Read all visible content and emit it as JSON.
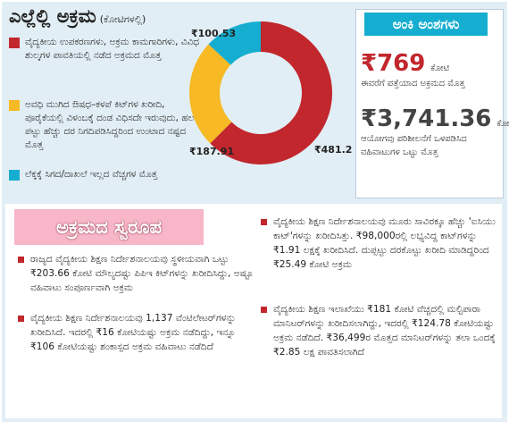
{
  "chart_data": {
    "type": "pie",
    "title": "ಎಲ್ಲೆಲ್ಲಿ ಅಕ್ರಮ",
    "subtitle": "(ಕೋಟಿಗಳಲ್ಲಿ)",
    "categories": [
      "ವೈದ್ಯಕೀಯ ಉಪಕರಣಗಳು, ಅಕ್ರಮ ಕಾಮಗಾರಿಗಳು, ವಿವಿಧ ಶುಲ್ಕಗಳ ಪಾವತಿಯಲ್ಲಿ ನಡೆದ ಅಕ್ರಮದ ಮೊತ್ತ",
      "ಅವಧಿ ಮುಗಿದ ಔಷಧ–ಕಳಪೆ ಕಿಟ್‌ಗಳ ಖರೀದಿ, ಪೂರೈಕೆಯಲ್ಲಿ ವಿಳಂಬಕ್ಕೆ ದಂಡ ವಿಧಿಸದೇ ಇರುವುದು, ಹಲವು ಪಟ್ಟು ಹೆಚ್ಚು ದರ ನಿಗದಿಪಡಿಸಿದ್ದರಿಂದ ಉಂಟಾದ ನಷ್ಟದ ಮೊತ್ತ",
      "ಲೆಕ್ಕಕ್ಕೆ ಸಿಗದ/ದಾಖಲೆ ಇಲ್ಲದ ವೆಚ್ಚಗಳ ಮೊತ್ತ"
    ],
    "values": [
      481.2,
      187.91,
      100.53
    ],
    "value_labels": [
      "₹481.2",
      "₹187.91",
      "₹100.53"
    ],
    "colors": [
      "#c1272d",
      "#f7b924",
      "#16aed0"
    ]
  },
  "stats": {
    "title": "ಅಂಕಿ ಅಂಶಗಳು",
    "items": [
      {
        "amount": "₹769",
        "unit": "ಕೋಟಿ",
        "text": "ಈವರೆಗೆ ಪತ್ತೆಯಾದ ಅಕ್ರಮದ ಮೊತ್ತ"
      },
      {
        "amount": "₹3,741.36",
        "unit": "ಕೋಟಿ",
        "text": "ಆಯೋಗವು ಪರಿಶೀಲನೆಗೆ ಒಳಪಡಿಸಿದ ವಹಿವಾಟುಗಳ ಒಟ್ಟು ಮೊತ್ತ"
      }
    ]
  },
  "nature": {
    "title": "ಅಕ್ರಮದ ಸ್ವರೂಪ",
    "points": [
      "ರಾಜ್ಯದ ವೈದ್ಯಕೀಯ ಶಿಕ್ಷಣ ನಿರ್ದೇಶನಾಲಯವು ಸ್ಥಳೀಯವಾಗಿ ಒಟ್ಟು ₹203.66 ಕೋಟಿ ಮೌಲ್ಯದಷ್ಟು ಪಿಪಿಇ ಕಿಟ್‌ಗಳನ್ನು ಖರೀದಿಸಿದ್ದು, ಅಷ್ಟೂ ವಹಿವಾಟು ಸಂಪೂರ್ಣವಾಗಿ ಅಕ್ರಮ",
      "ವೈದ್ಯಕೀಯ ಶಿಕ್ಷಣ ನಿರ್ದೇಶನಾಲಯವು 1,137 ವೆಂಟಿಲೇಟರ್‌ಗಳನ್ನು ಖರೀದಿಸಿದೆ. ಇದರಲ್ಲಿ ₹16 ಕೋಟಿಯಷ್ಟು ಅಕ್ರಮ ನಡೆದಿದ್ದು, ಇನ್ನೂ ₹106 ಕೋಟಿಯಷ್ಟು ಶಂಕಾಸ್ಪದ ಅಕ್ರಮ ವಹಿವಾಟು ನಡೆದಿದೆ",
      "ವೈದ್ಯಕೀಯ ಶಿಕ್ಷಣ ನಿರ್ದೇಶನಾಲಯವು ಮೂರು ಸಾವಿರಕ್ಕೂ ಹೆಚ್ಚು 'ಐಸಿಯು ಕಾಟ್'ಗಳನ್ನು ಖರೀದಿಸಿತ್ತು. ₹98,000ರಲ್ಲಿ ಲಭ್ಯವಿದ್ದ ಕಾಟ್‌ಗಳನ್ನು ₹1.91 ಲಕ್ಷಕ್ಕೆ ಖರೀದಿಸಿದೆ. ದುಪ್ಪಟ್ಟು ದರಕೊಟ್ಟು ಖರೀದಿ ಮಾಡಿದ್ದರಿಂದ ₹25.49 ಕೋಟಿ ಅಕ್ರಮ",
      "ವೈದ್ಯಕೀಯ ಶಿಕ್ಷಣ ಇಲಾಖೆಯು ₹181 ಕೋಟಿ ವೆಚ್ಚದಲ್ಲಿ ಮಲ್ಟಿಪಾರಾ ಮಾನಿಟರ್‌ಗಳನ್ನು ಖರೀದಿಸಲಾಗಿದ್ದು, ಇದರಲ್ಲಿ ₹124.78 ಕೋಟಿಯಷ್ಟು ಅಕ್ರಮ ನಡೆದಿದೆ. ₹36,499ರ ಮೊತ್ತದ ಮಾನಿಟರ್‌ಗಳನ್ನು ತಲಾ ಒಂದಕ್ಕೆ ₹2.85 ಲಕ್ಷ ಪಾವತಿಸಲಾಗಿದೆ"
    ]
  }
}
